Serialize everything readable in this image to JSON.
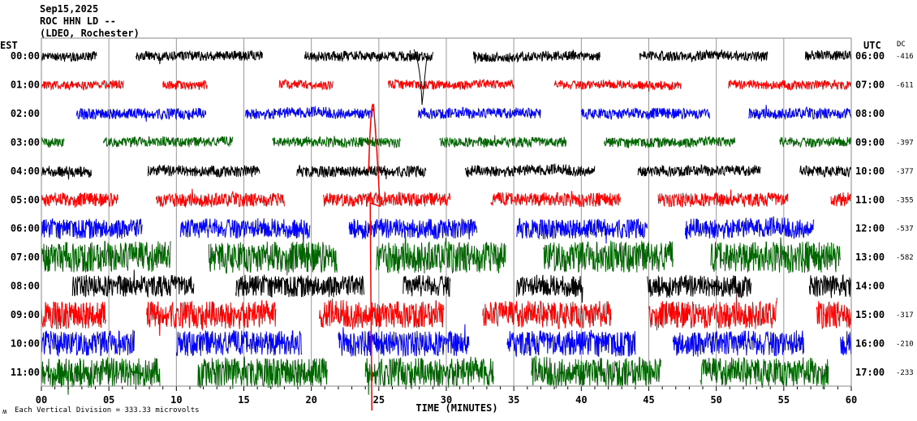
{
  "header": {
    "date": "Sep15,2025",
    "station": "ROC HHN LD --",
    "network": "(LDEO, Rochester)"
  },
  "footer": {
    "scale_note": "Each Vertical Division =  333.33 microvolts",
    "logo_glyph": "ʍ"
  },
  "chart_data": {
    "type": "line",
    "title": "Sep15,2025 ROC HHN LD -- (LDEO, Rochester)",
    "xlabel": "TIME (MINUTES)",
    "xlim": [
      0,
      60
    ],
    "x_ticks": [
      "00",
      "05",
      "10",
      "15",
      "20",
      "25",
      "30",
      "35",
      "40",
      "45",
      "50",
      "55",
      "60"
    ],
    "left_axis_title": "EST",
    "right_axis_title": "UTC",
    "dc_title": "DC",
    "grid": "vertical every 5 minutes",
    "trace_colors": [
      "#000000",
      "#ff0000",
      "#0000ff",
      "#006400"
    ],
    "rows": [
      {
        "est": "00:00",
        "utc": "06:00",
        "dc": "-416",
        "noise": 1.0,
        "segments": [
          [
            0,
            4.1
          ],
          [
            7,
            16.4
          ],
          [
            19.5,
            29
          ],
          [
            32,
            41.4
          ],
          [
            44.3,
            53.8
          ],
          [
            56.6,
            60
          ]
        ]
      },
      {
        "est": "01:00",
        "utc": "07:00",
        "dc": "-611",
        "noise": 0.9,
        "segments": [
          [
            0,
            6.1
          ],
          [
            9,
            12.3
          ],
          [
            17.6,
            21.6
          ],
          [
            25.7,
            35
          ],
          [
            38,
            47.4
          ],
          [
            50.9,
            60
          ]
        ]
      },
      {
        "est": "02:00",
        "utc": "08:00",
        "dc": "",
        "noise": 1.1,
        "segments": [
          [
            2.6,
            12.2
          ],
          [
            15.1,
            24.6
          ],
          [
            27.9,
            37
          ],
          [
            40,
            49.5
          ],
          [
            52.4,
            60
          ]
        ]
      },
      {
        "est": "03:00",
        "utc": "09:00",
        "dc": "-397",
        "noise": 1.0,
        "segments": [
          [
            0,
            1.7
          ],
          [
            4.6,
            14.2
          ],
          [
            17.1,
            26.6
          ],
          [
            29.5,
            38.9
          ],
          [
            41.7,
            51.4
          ],
          [
            54.7,
            60
          ]
        ]
      },
      {
        "est": "04:00",
        "utc": "10:00",
        "dc": "-377",
        "noise": 1.1,
        "segments": [
          [
            0,
            3.7
          ],
          [
            7.9,
            16.2
          ],
          [
            18.9,
            28.5
          ],
          [
            31.4,
            41
          ],
          [
            44.2,
            53.3
          ],
          [
            56.2,
            60
          ]
        ]
      },
      {
        "est": "05:00",
        "utc": "11:00",
        "dc": "-355",
        "noise": 1.4,
        "segments": [
          [
            0,
            5.7
          ],
          [
            8.5,
            18
          ],
          [
            20.9,
            30.3
          ],
          [
            33.3,
            42.9
          ],
          [
            45.7,
            55.3
          ],
          [
            58.5,
            60
          ]
        ]
      },
      {
        "est": "06:00",
        "utc": "12:00",
        "dc": "-537",
        "noise": 2.0,
        "segments": [
          [
            0,
            7.5
          ],
          [
            10.3,
            19.9
          ],
          [
            22.8,
            32.3
          ],
          [
            35.2,
            44.9
          ],
          [
            47.7,
            57.2
          ]
        ]
      },
      {
        "est": "07:00",
        "utc": "13:00",
        "dc": "-582",
        "noise": 3.2,
        "segments": [
          [
            0,
            9.6
          ],
          [
            12.4,
            21.9
          ],
          [
            24.8,
            34.4
          ],
          [
            37.2,
            46.8
          ],
          [
            49.6,
            59.2
          ]
        ]
      },
      {
        "est": "08:00",
        "utc": "14:00",
        "dc": "",
        "noise": 2.2,
        "segments": [
          [
            2.3,
            11.3
          ],
          [
            14.4,
            23.9
          ],
          [
            26.8,
            30.3
          ],
          [
            35.2,
            40.1
          ],
          [
            44.9,
            52.6
          ],
          [
            56.9,
            60
          ]
        ]
      },
      {
        "est": "09:00",
        "utc": "15:00",
        "dc": "-317",
        "noise": 2.8,
        "segments": [
          [
            0,
            4.8
          ],
          [
            7.8,
            17.4
          ],
          [
            20.6,
            29.8
          ],
          [
            32.7,
            42.2
          ],
          [
            45,
            54.5
          ],
          [
            57.4,
            60
          ]
        ]
      },
      {
        "est": "10:00",
        "utc": "16:00",
        "dc": "-210",
        "noise": 2.6,
        "segments": [
          [
            0,
            6.9
          ],
          [
            10,
            19.3
          ],
          [
            22,
            31.7
          ],
          [
            34.5,
            44
          ],
          [
            46.8,
            56.5
          ],
          [
            59.2,
            60
          ]
        ]
      },
      {
        "est": "11:00",
        "utc": "17:00",
        "dc": "-233",
        "noise": 3.0,
        "segments": [
          [
            0,
            8.8
          ],
          [
            11.6,
            21.2
          ],
          [
            24,
            33.5
          ],
          [
            36.3,
            45.9
          ],
          [
            48.8,
            58.3
          ]
        ]
      }
    ]
  }
}
